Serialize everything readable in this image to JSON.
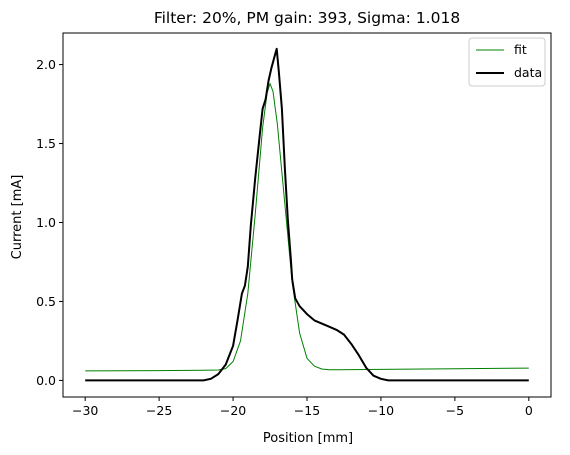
{
  "chart_data": {
    "type": "line",
    "title": "Filter: 20%, PM gain: 393, Sigma: 1.018",
    "xlabel": "Position [mm]",
    "ylabel": "Current [mA]",
    "xlim": [
      -31.5,
      1.5
    ],
    "ylim": [
      -0.105,
      2.2
    ],
    "xticks": [
      -30,
      -25,
      -20,
      -15,
      -10,
      -5,
      0
    ],
    "xtick_labels": [
      "−30",
      "−25",
      "−20",
      "−15",
      "−10",
      "−5",
      "0"
    ],
    "yticks": [
      0.0,
      0.5,
      1.0,
      1.5,
      2.0
    ],
    "ytick_labels": [
      "0.0",
      "0.5",
      "1.0",
      "1.5",
      "2.0"
    ],
    "grid": false,
    "legend_position": "top-right",
    "series": [
      {
        "name": "fit",
        "color": "#008000",
        "x": [
          -30,
          -25,
          -22,
          -21,
          -20.5,
          -20,
          -19.5,
          -19,
          -18.5,
          -18,
          -17.7,
          -17.5,
          -17.3,
          -17,
          -16.5,
          -16,
          -15.5,
          -15,
          -14.5,
          -14,
          -13.5,
          -13,
          -10,
          -5,
          0
        ],
        "y": [
          0.06,
          0.062,
          0.064,
          0.066,
          0.075,
          0.12,
          0.25,
          0.55,
          1.05,
          1.6,
          1.82,
          1.88,
          1.83,
          1.62,
          1.12,
          0.62,
          0.3,
          0.14,
          0.09,
          0.072,
          0.068,
          0.068,
          0.07,
          0.074,
          0.078
        ]
      },
      {
        "name": "data",
        "color": "#000000",
        "x": [
          -30,
          -25,
          -22,
          -21.5,
          -21,
          -20.5,
          -20,
          -19.7,
          -19.4,
          -19.2,
          -19,
          -18.8,
          -18.5,
          -18.2,
          -18,
          -17.8,
          -17.6,
          -17.4,
          -17.2,
          -17.05,
          -16.9,
          -16.7,
          -16.5,
          -16.3,
          -16.1,
          -16,
          -15.8,
          -15.5,
          -15,
          -14.5,
          -14,
          -13.5,
          -13,
          -12.5,
          -12,
          -11.5,
          -11,
          -10.5,
          -10,
          -9.5,
          -9,
          -8,
          -5,
          0
        ],
        "y": [
          0.0,
          0.0,
          0.0,
          0.01,
          0.04,
          0.1,
          0.22,
          0.38,
          0.55,
          0.6,
          0.72,
          0.98,
          1.28,
          1.55,
          1.72,
          1.78,
          1.9,
          1.98,
          2.05,
          2.1,
          1.95,
          1.72,
          1.35,
          1.02,
          0.78,
          0.64,
          0.52,
          0.47,
          0.42,
          0.38,
          0.36,
          0.34,
          0.32,
          0.29,
          0.23,
          0.16,
          0.08,
          0.03,
          0.01,
          0.0,
          0.0,
          0.0,
          0.0,
          0.0
        ]
      }
    ]
  }
}
